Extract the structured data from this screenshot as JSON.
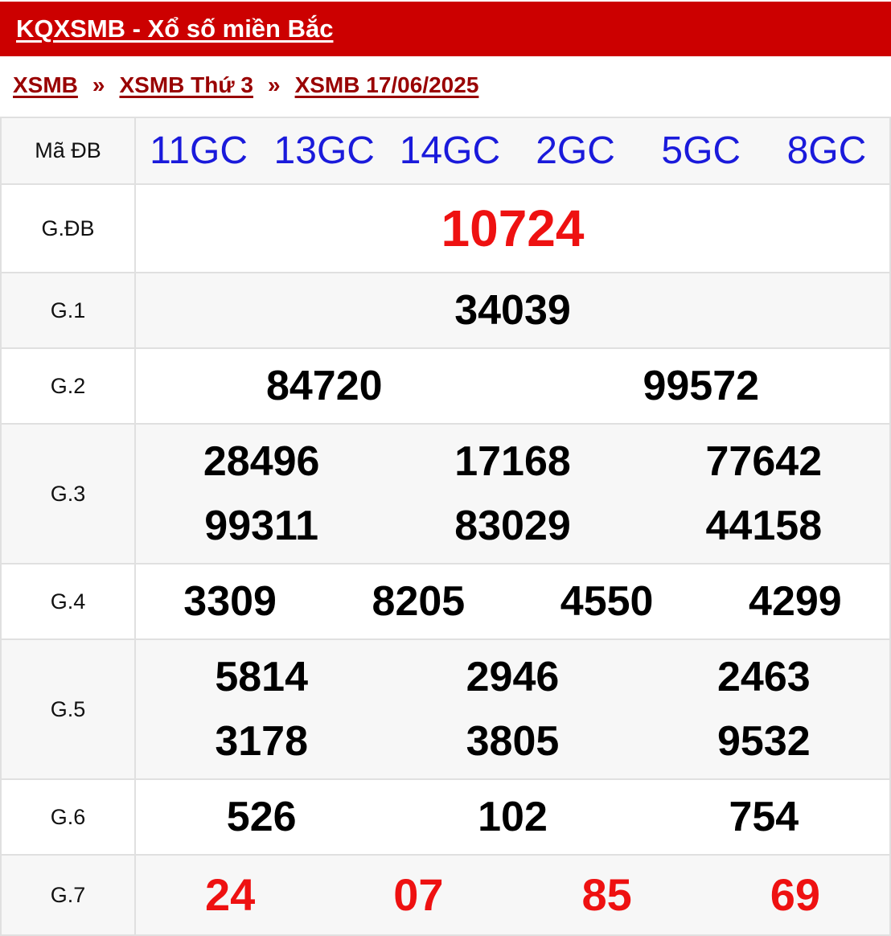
{
  "header": {
    "title": "KQXSMB - Xổ số miền Bắc"
  },
  "breadcrumb": {
    "items": [
      "XSMB",
      "XSMB Thứ 3",
      "XSMB 17/06/2025"
    ],
    "separator": "»"
  },
  "table": {
    "ma_db": {
      "label": "Mã ĐB",
      "codes": [
        "11GC",
        "13GC",
        "14GC",
        "2GC",
        "5GC",
        "8GC"
      ]
    },
    "gdb": {
      "label": "G.ĐB",
      "numbers": [
        "10724"
      ]
    },
    "g1": {
      "label": "G.1",
      "numbers": [
        "34039"
      ]
    },
    "g2": {
      "label": "G.2",
      "numbers": [
        "84720",
        "99572"
      ]
    },
    "g3": {
      "label": "G.3",
      "numbers": [
        "28496",
        "17168",
        "77642",
        "99311",
        "83029",
        "44158"
      ]
    },
    "g4": {
      "label": "G.4",
      "numbers": [
        "3309",
        "8205",
        "4550",
        "4299"
      ]
    },
    "g5": {
      "label": "G.5",
      "numbers": [
        "5814",
        "2946",
        "2463",
        "3178",
        "3805",
        "9532"
      ]
    },
    "g6": {
      "label": "G.6",
      "numbers": [
        "526",
        "102",
        "754"
      ]
    },
    "g7": {
      "label": "G.7",
      "numbers": [
        "24",
        "07",
        "85",
        "69"
      ]
    }
  },
  "colors": {
    "header_bg": "#cc0000",
    "breadcrumb": "#990000",
    "code": "#1a1adb",
    "highlight": "#ee1111"
  }
}
